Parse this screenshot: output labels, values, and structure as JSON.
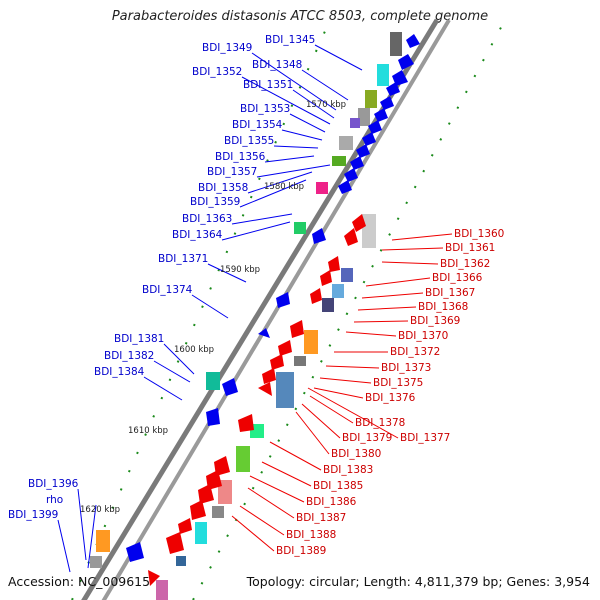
{
  "title": "Parabacteroides distasonis ATCC 8503, complete genome",
  "footer": {
    "accession_label": "Accession:",
    "accession": "NC_009615",
    "summary": "Topology: circular; Length: 4,811,379 bp; Genes: 3,954"
  },
  "colors": {
    "forward_strand": "#0000ee",
    "reverse_strand": "#ee0000",
    "axis": "#7a7a7a",
    "tick": "#119911"
  },
  "diagram": {
    "scale_marks": [
      {
        "label": "1570 kbp"
      },
      {
        "label": "1580 kbp"
      },
      {
        "label": "1590 kbp"
      },
      {
        "label": "1600 kbp"
      },
      {
        "label": "1610 kbp"
      },
      {
        "label": "1620 kbp"
      }
    ],
    "forward_genes": [
      {
        "label": "BDI_1345"
      },
      {
        "label": "BDI_1348"
      },
      {
        "label": "BDI_1349"
      },
      {
        "label": "BDI_1351"
      },
      {
        "label": "BDI_1352"
      },
      {
        "label": "BDI_1353"
      },
      {
        "label": "BDI_1354"
      },
      {
        "label": "BDI_1355"
      },
      {
        "label": "BDI_1356"
      },
      {
        "label": "BDI_1357"
      },
      {
        "label": "BDI_1358"
      },
      {
        "label": "BDI_1359"
      },
      {
        "label": "BDI_1363"
      },
      {
        "label": "BDI_1364"
      },
      {
        "label": "BDI_1371"
      },
      {
        "label": "BDI_1374"
      },
      {
        "label": "BDI_1381"
      },
      {
        "label": "BDI_1382"
      },
      {
        "label": "BDI_1384"
      },
      {
        "label": "BDI_1396"
      },
      {
        "label": "rho"
      },
      {
        "label": "BDI_1399"
      }
    ],
    "reverse_genes": [
      {
        "label": "BDI_1360"
      },
      {
        "label": "BDI_1361"
      },
      {
        "label": "BDI_1362"
      },
      {
        "label": "BDI_1366"
      },
      {
        "label": "BDI_1367"
      },
      {
        "label": "BDI_1368"
      },
      {
        "label": "BDI_1369"
      },
      {
        "label": "BDI_1370"
      },
      {
        "label": "BDI_1372"
      },
      {
        "label": "BDI_1373"
      },
      {
        "label": "BDI_1375"
      },
      {
        "label": "BDI_1376"
      },
      {
        "label": "BDI_1378"
      },
      {
        "label": "BDI_1377"
      },
      {
        "label": "BDI_1379"
      },
      {
        "label": "BDI_1380"
      },
      {
        "label": "BDI_1383"
      },
      {
        "label": "BDI_1385"
      },
      {
        "label": "BDI_1386"
      },
      {
        "label": "BDI_1387"
      },
      {
        "label": "BDI_1388"
      },
      {
        "label": "BDI_1389"
      }
    ]
  }
}
